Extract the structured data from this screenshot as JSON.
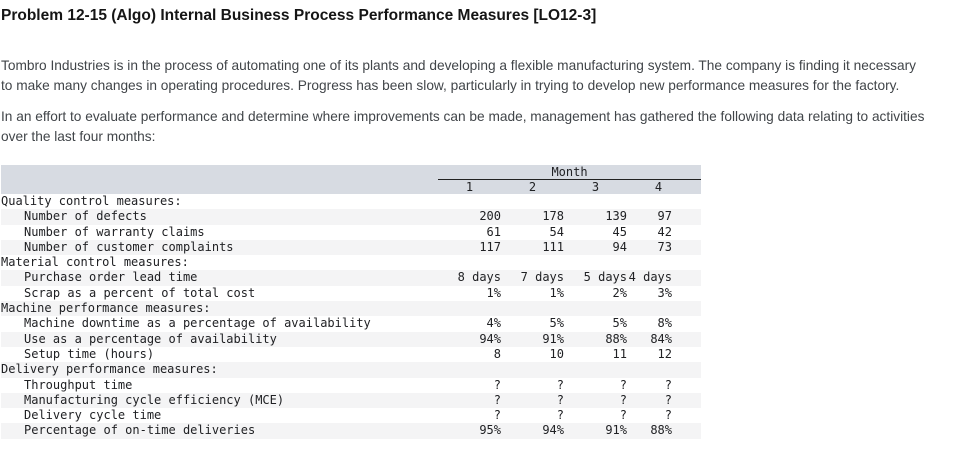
{
  "page": {
    "title": "Problem 12-15 (Algo) Internal Business Process Performance Measures [LO12-3]",
    "intro_paragraph": "Tombro Industries is in the process of automating one of its plants and developing a flexible manufacturing system. The company is finding it necessary to make many changes in operating procedures. Progress has been slow, particularly in trying to develop new performance measures for the factory.",
    "data_paragraph": "In an effort to evaluate performance and determine where improvements can be made, management has gathered the following data relating to activities over the last four months:"
  },
  "table": {
    "group_header": "Month",
    "column_headers": [
      "1",
      "2",
      "3",
      "4"
    ],
    "rows": [
      {
        "label": "Quality control measures:",
        "indent": false,
        "values": [
          "",
          "",
          "",
          ""
        ]
      },
      {
        "label": "Number of defects",
        "indent": true,
        "values": [
          "200",
          "178",
          "139",
          "97"
        ]
      },
      {
        "label": "Number of warranty claims",
        "indent": true,
        "values": [
          "61",
          "54",
          "45",
          "42"
        ]
      },
      {
        "label": "Number of customer complaints",
        "indent": true,
        "values": [
          "117",
          "111",
          "94",
          "73"
        ]
      },
      {
        "label": "Material control measures:",
        "indent": false,
        "values": [
          "",
          "",
          "",
          ""
        ]
      },
      {
        "label": "Purchase order lead time",
        "indent": true,
        "values": [
          "8 days",
          "7 days",
          "5 days",
          "4 days"
        ]
      },
      {
        "label": "Scrap as a percent of total cost",
        "indent": true,
        "values": [
          "1%",
          "1%",
          "2%",
          "3%"
        ]
      },
      {
        "label": "Machine performance measures:",
        "indent": false,
        "values": [
          "",
          "",
          "",
          ""
        ]
      },
      {
        "label": "Machine downtime as a percentage of availability",
        "indent": true,
        "values": [
          "4%",
          "5%",
          "5%",
          "8%"
        ]
      },
      {
        "label": "Use as a percentage of availability",
        "indent": true,
        "values": [
          "94%",
          "91%",
          "88%",
          "84%"
        ]
      },
      {
        "label": "Setup time (hours)",
        "indent": true,
        "values": [
          "8",
          "10",
          "11",
          "12"
        ]
      },
      {
        "label": "Delivery performance measures:",
        "indent": false,
        "values": [
          "",
          "",
          "",
          ""
        ]
      },
      {
        "label": "Throughput time",
        "indent": true,
        "values": [
          "?",
          "?",
          "?",
          "?"
        ]
      },
      {
        "label": "Manufacturing cycle efficiency (MCE)",
        "indent": true,
        "values": [
          "?",
          "?",
          "?",
          "?"
        ]
      },
      {
        "label": "Delivery cycle time",
        "indent": true,
        "values": [
          "?",
          "?",
          "?",
          "?"
        ]
      },
      {
        "label": "Percentage of on-time deliveries",
        "indent": true,
        "values": [
          "95%",
          "94%",
          "91%",
          "88%"
        ]
      }
    ]
  },
  "colors": {
    "header_bg": "#d7dbe2",
    "stripe_bg": "#f4f4f5",
    "rule": "#222222",
    "body_text": "#414549",
    "table_text": "#202124",
    "title_text": "#151515"
  }
}
